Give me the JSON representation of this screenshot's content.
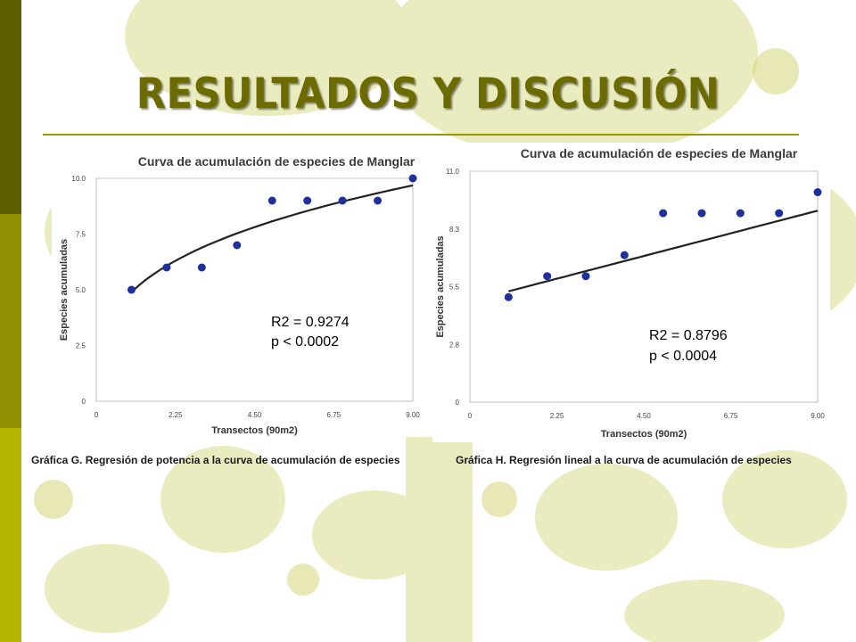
{
  "slide": {
    "title": "RESULTADOS Y DISCUSIÓN",
    "colors": {
      "title": "#6b6b00",
      "rule": "#999900",
      "left_bar": [
        "#5f5f00",
        "#8f8f00",
        "#b5b500"
      ],
      "tree": "#c9cb6a"
    }
  },
  "chart_data": [
    {
      "type": "scatter",
      "title": "Curva de acumulación de especies de Manglar",
      "xlabel": "Transectos (90m2)",
      "ylabel": "Especies acumuladas",
      "xticks": [
        "0",
        "2.25",
        "4.50",
        "6.75",
        "9.00"
      ],
      "yticks": [
        "0",
        "2.5",
        "5.0",
        "7.5",
        "10.0"
      ],
      "xlim": [
        0,
        9
      ],
      "ylim": [
        0,
        10
      ],
      "x": [
        1,
        2,
        3,
        4,
        5,
        6,
        7,
        8,
        9
      ],
      "y": [
        5,
        6,
        6,
        7,
        9,
        9,
        9,
        9,
        10
      ],
      "fit": {
        "kind": "power",
        "a": 4.9,
        "b": 0.31
      },
      "annotations": [
        "R2 = 0.9274",
        "p < 0.0002"
      ],
      "caption": "Gráfica G. Regresión de potencia a la curva de acumulación de especies",
      "point_color": "#1f2f9c"
    },
    {
      "type": "scatter",
      "title": "Curva de acumulación de especies de Manglar",
      "xlabel": "Transectos (90m2)",
      "ylabel": "Especies acumuladas",
      "xticks": [
        "0",
        "2.25",
        "4.50",
        "6.75",
        "9.00"
      ],
      "yticks": [
        "0",
        "2.8",
        "5.5",
        "8.3",
        "11.0"
      ],
      "xlim": [
        0,
        9
      ],
      "ylim": [
        0,
        11
      ],
      "x": [
        1,
        2,
        3,
        4,
        5,
        6,
        7,
        8,
        9
      ],
      "y": [
        5,
        6,
        6,
        7,
        9,
        9,
        9,
        9,
        10
      ],
      "fit": {
        "kind": "linear",
        "slope": 0.48,
        "intercept": 4.8
      },
      "annotations": [
        "R2 = 0.8796",
        "p < 0.0004"
      ],
      "caption": "Gráfica H. Regresión lineal a la curva de acumulación de especies",
      "point_color": "#1f2f9c"
    }
  ]
}
